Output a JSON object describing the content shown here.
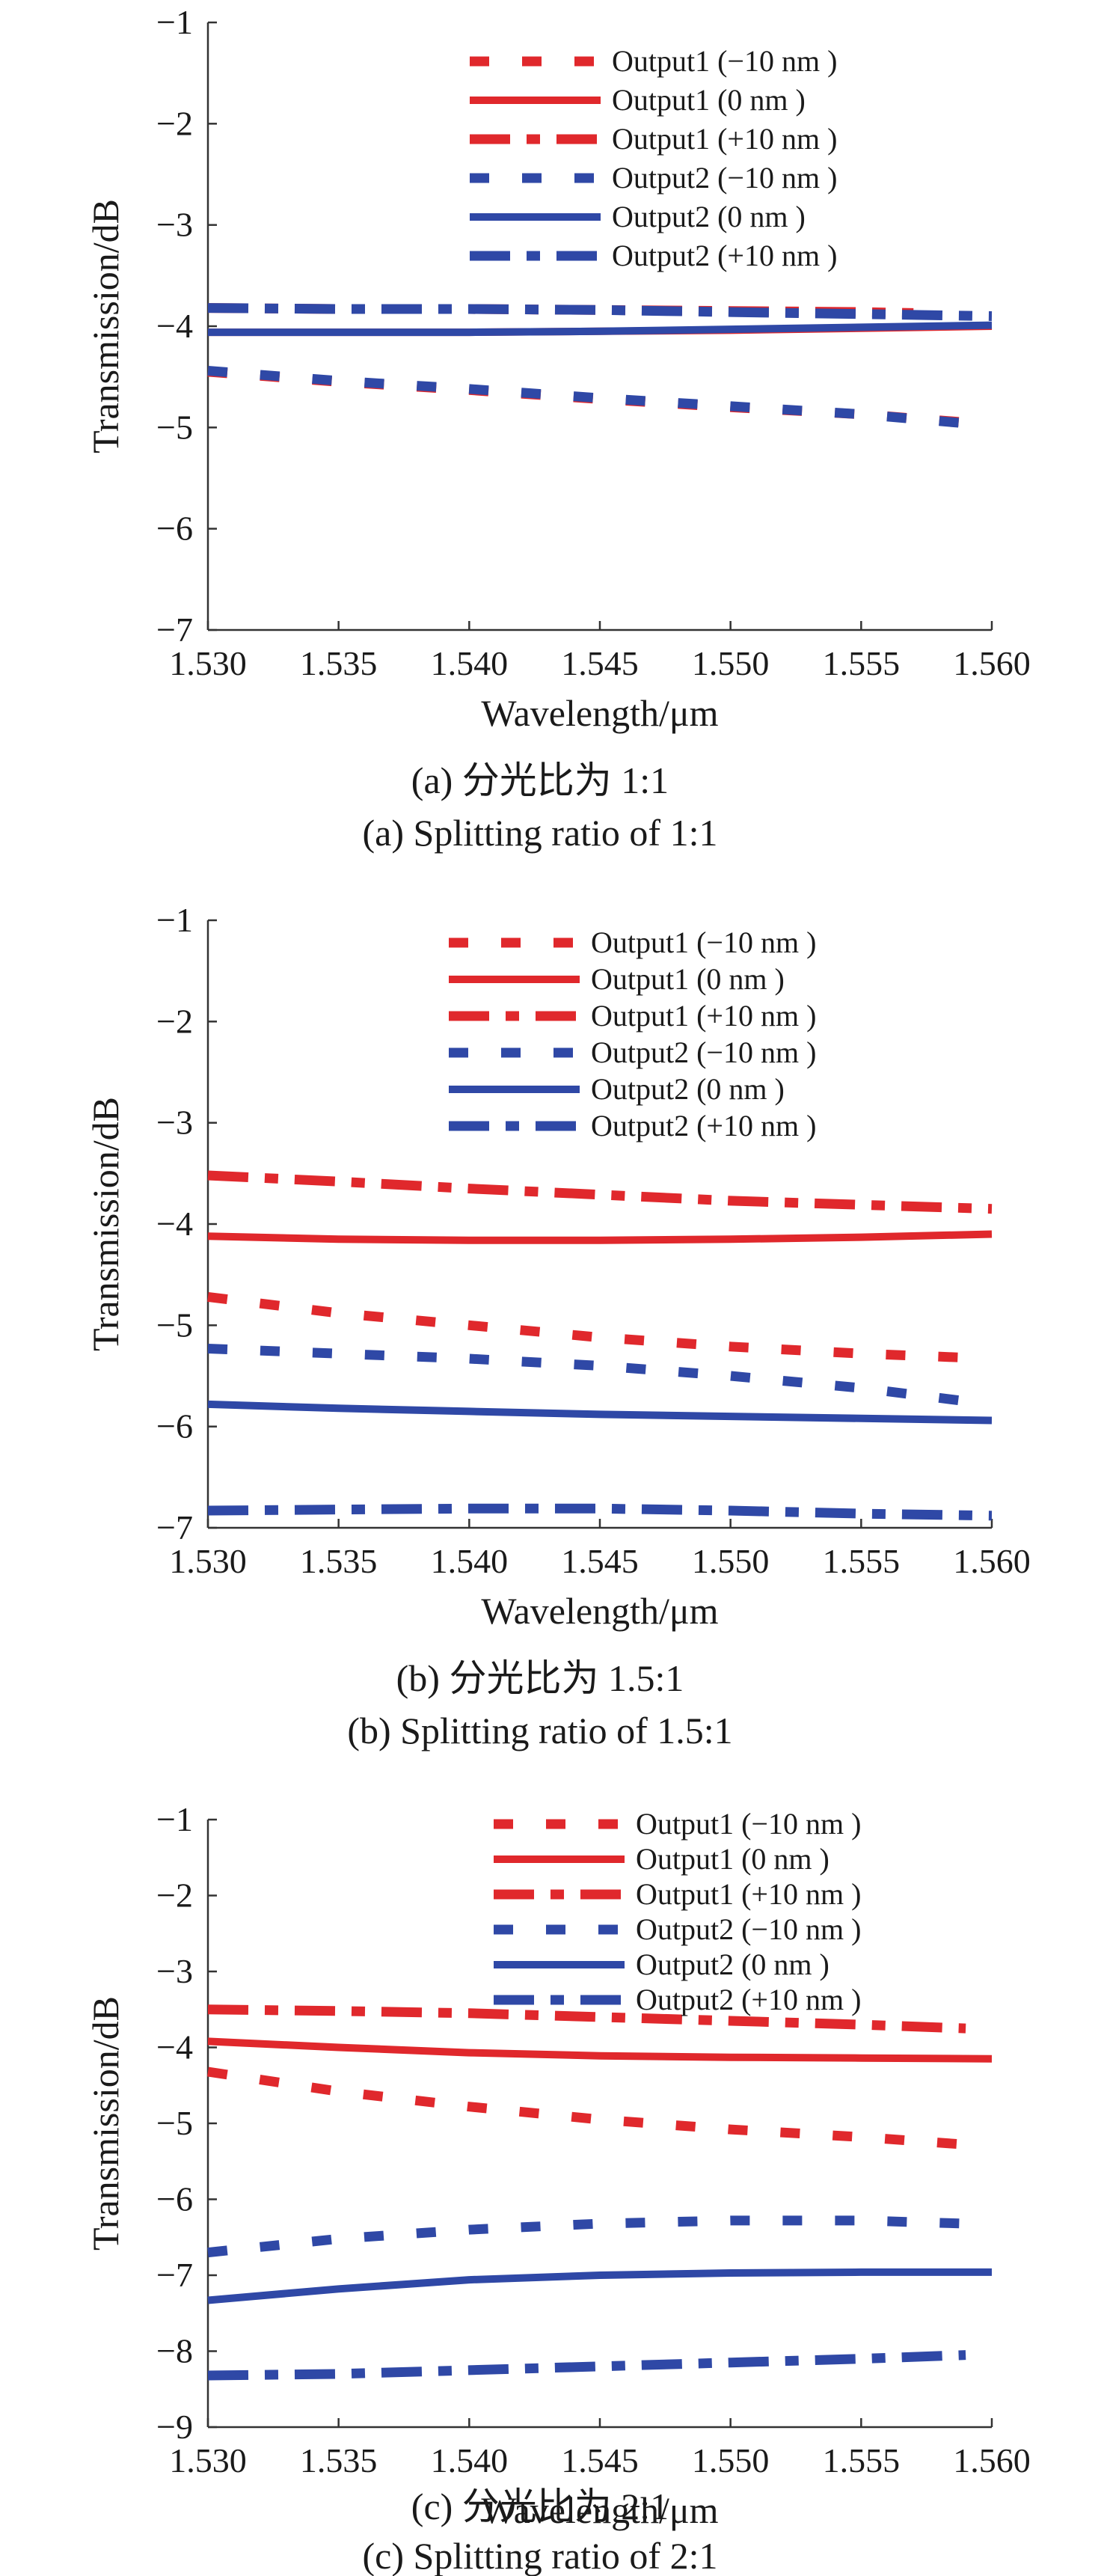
{
  "colors": {
    "output1": "#e0282c",
    "output2": "#2f48a6",
    "axis": "#333333"
  },
  "chart_data": [
    {
      "type": "line",
      "caption_cn": "(a) 分光比为 1:1",
      "caption_en": "(a) Splitting ratio of 1:1",
      "xlabel": "Wavelength/μm",
      "ylabel": "Transmission/dB",
      "xlim": [
        1.53,
        1.56
      ],
      "ylim": [
        -7,
        -1
      ],
      "xticks": [
        "1.530",
        "1.535",
        "1.540",
        "1.545",
        "1.550",
        "1.555",
        "1.560"
      ],
      "yticks": [
        "−1",
        "−2",
        "−3",
        "−4",
        "−5",
        "−6",
        "−7"
      ],
      "legend_position": "top-right",
      "series": [
        {
          "name": "Output1 (−10 nm )",
          "color_key": "output1",
          "dash": "dot",
          "x": [
            1.53,
            1.535,
            1.54,
            1.545,
            1.55,
            1.555,
            1.559
          ],
          "y": [
            -4.45,
            -4.55,
            -4.63,
            -4.72,
            -4.8,
            -4.87,
            -4.95
          ]
        },
        {
          "name": "Output1 (0 nm )",
          "color_key": "output1",
          "dash": "solid",
          "x": [
            1.53,
            1.535,
            1.54,
            1.545,
            1.55,
            1.555,
            1.56
          ],
          "y": [
            -4.06,
            -4.06,
            -4.06,
            -4.05,
            -4.04,
            -4.02,
            -4.0
          ]
        },
        {
          "name": "Output1 (+10 nm )",
          "color_key": "output1",
          "dash": "dashdot",
          "x": [
            1.53,
            1.535,
            1.54,
            1.545,
            1.55,
            1.555,
            1.557
          ],
          "y": [
            -3.82,
            -3.83,
            -3.83,
            -3.84,
            -3.85,
            -3.86,
            -3.87
          ]
        },
        {
          "name": "Output2 (−10 nm )",
          "color_key": "output2",
          "dash": "dot",
          "x": [
            1.53,
            1.535,
            1.54,
            1.545,
            1.55,
            1.555,
            1.559
          ],
          "y": [
            -4.44,
            -4.54,
            -4.62,
            -4.71,
            -4.79,
            -4.87,
            -4.96
          ]
        },
        {
          "name": "Output2 (0 nm )",
          "color_key": "output2",
          "dash": "solid",
          "x": [
            1.53,
            1.535,
            1.54,
            1.545,
            1.55,
            1.555,
            1.56
          ],
          "y": [
            -4.06,
            -4.06,
            -4.06,
            -4.05,
            -4.03,
            -4.01,
            -3.99
          ]
        },
        {
          "name": "Output2 (+10 nm )",
          "color_key": "output2",
          "dash": "dashdot",
          "x": [
            1.53,
            1.535,
            1.54,
            1.545,
            1.55,
            1.555,
            1.56
          ],
          "y": [
            -3.82,
            -3.83,
            -3.83,
            -3.84,
            -3.86,
            -3.88,
            -3.9
          ]
        }
      ]
    },
    {
      "type": "line",
      "caption_cn": "(b) 分光比为 1.5:1",
      "caption_en": "(b) Splitting ratio of 1.5:1",
      "xlabel": "Wavelength/μm",
      "ylabel": "Transmission/dB",
      "xlim": [
        1.53,
        1.56
      ],
      "ylim": [
        -7,
        -1
      ],
      "xticks": [
        "1.530",
        "1.535",
        "1.540",
        "1.545",
        "1.550",
        "1.555",
        "1.560"
      ],
      "yticks": [
        "−1",
        "−2",
        "−3",
        "−4",
        "−5",
        "−6",
        "−7"
      ],
      "legend_position": "top-right",
      "series": [
        {
          "name": "Output1 (−10 nm )",
          "color_key": "output1",
          "dash": "dot",
          "x": [
            1.53,
            1.535,
            1.54,
            1.545,
            1.55,
            1.555,
            1.559
          ],
          "y": [
            -4.72,
            -4.88,
            -5.0,
            -5.12,
            -5.21,
            -5.28,
            -5.32
          ]
        },
        {
          "name": "Output1 (0 nm )",
          "color_key": "output1",
          "dash": "solid",
          "x": [
            1.53,
            1.535,
            1.54,
            1.545,
            1.55,
            1.555,
            1.56
          ],
          "y": [
            -4.12,
            -4.15,
            -4.16,
            -4.16,
            -4.15,
            -4.13,
            -4.1
          ]
        },
        {
          "name": "Output1 (+10 nm )",
          "color_key": "output1",
          "dash": "dashdot",
          "x": [
            1.53,
            1.535,
            1.54,
            1.545,
            1.55,
            1.555,
            1.56
          ],
          "y": [
            -3.52,
            -3.58,
            -3.65,
            -3.71,
            -3.77,
            -3.81,
            -3.85
          ]
        },
        {
          "name": "Output2 (−10 nm )",
          "color_key": "output2",
          "dash": "dot",
          "x": [
            1.53,
            1.535,
            1.54,
            1.545,
            1.55,
            1.555,
            1.559
          ],
          "y": [
            -5.23,
            -5.28,
            -5.33,
            -5.4,
            -5.5,
            -5.62,
            -5.75
          ]
        },
        {
          "name": "Output2 (0 nm )",
          "color_key": "output2",
          "dash": "solid",
          "x": [
            1.53,
            1.535,
            1.54,
            1.545,
            1.55,
            1.555,
            1.56
          ],
          "y": [
            -5.78,
            -5.82,
            -5.85,
            -5.88,
            -5.9,
            -5.92,
            -5.94
          ]
        },
        {
          "name": "Output2 (+10 nm )",
          "color_key": "output2",
          "dash": "dashdot",
          "x": [
            1.53,
            1.535,
            1.54,
            1.545,
            1.55,
            1.555,
            1.56
          ],
          "y": [
            -6.83,
            -6.82,
            -6.81,
            -6.81,
            -6.83,
            -6.86,
            -6.88
          ]
        }
      ]
    },
    {
      "type": "line",
      "caption_cn": "(c) 分光比为 2:1",
      "caption_en": "(c) Splitting ratio of 2:1",
      "xlabel": "Wavelength/μm",
      "ylabel": "Transmission/dB",
      "xlim": [
        1.53,
        1.56
      ],
      "ylim": [
        -9,
        -1
      ],
      "xticks": [
        "1.530",
        "1.535",
        "1.540",
        "1.545",
        "1.550",
        "1.555",
        "1.560"
      ],
      "yticks": [
        "−1",
        "−2",
        "−3",
        "−4",
        "−5",
        "−6",
        "−7",
        "−8",
        "−9"
      ],
      "legend_position": "top-right",
      "series": [
        {
          "name": "Output1 (−10 nm )",
          "color_key": "output1",
          "dash": "dot",
          "x": [
            1.53,
            1.535,
            1.54,
            1.545,
            1.55,
            1.555,
            1.559
          ],
          "y": [
            -4.32,
            -4.58,
            -4.78,
            -4.95,
            -5.08,
            -5.18,
            -5.28
          ]
        },
        {
          "name": "Output1 (0 nm )",
          "color_key": "output1",
          "dash": "solid",
          "x": [
            1.53,
            1.535,
            1.54,
            1.545,
            1.55,
            1.555,
            1.56
          ],
          "y": [
            -3.92,
            -4.0,
            -4.07,
            -4.11,
            -4.13,
            -4.14,
            -4.15
          ]
        },
        {
          "name": "Output1 (+10 nm )",
          "color_key": "output1",
          "dash": "dashdot",
          "x": [
            1.53,
            1.535,
            1.54,
            1.545,
            1.55,
            1.555,
            1.559
          ],
          "y": [
            -3.5,
            -3.52,
            -3.55,
            -3.6,
            -3.65,
            -3.7,
            -3.75
          ]
        },
        {
          "name": "Output2 (−10 nm )",
          "color_key": "output2",
          "dash": "dot",
          "x": [
            1.53,
            1.535,
            1.54,
            1.545,
            1.55,
            1.555,
            1.559
          ],
          "y": [
            -6.7,
            -6.52,
            -6.4,
            -6.32,
            -6.28,
            -6.28,
            -6.32
          ]
        },
        {
          "name": "Output2 (0 nm )",
          "color_key": "output2",
          "dash": "solid",
          "x": [
            1.53,
            1.535,
            1.54,
            1.545,
            1.55,
            1.555,
            1.56
          ],
          "y": [
            -7.33,
            -7.18,
            -7.06,
            -7.0,
            -6.97,
            -6.96,
            -6.96
          ]
        },
        {
          "name": "Output2 (+10 nm )",
          "color_key": "output2",
          "dash": "dashdot",
          "x": [
            1.53,
            1.535,
            1.54,
            1.545,
            1.55,
            1.555,
            1.559
          ],
          "y": [
            -8.32,
            -8.3,
            -8.25,
            -8.2,
            -8.15,
            -8.1,
            -8.05
          ]
        }
      ]
    }
  ]
}
